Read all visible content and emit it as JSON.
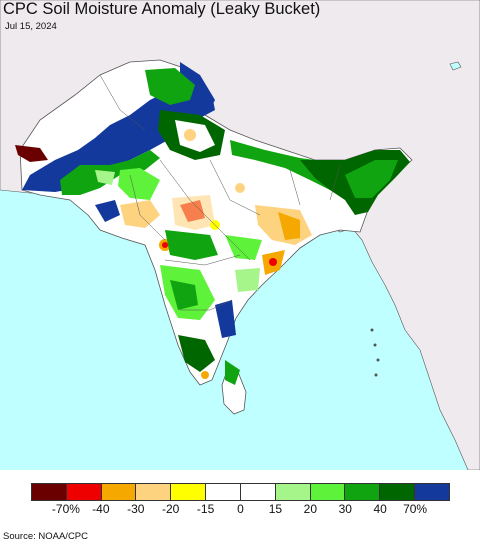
{
  "title": "CPC Soil Moisture Anomaly (Leaky Bucket)",
  "date": "Jul 15, 2024",
  "source": "Source: NOAA/CPC",
  "colors": {
    "ocean": "#bfffff",
    "land_outside": "#eeeaee",
    "land_neutral": "#ffffff",
    "border": "#555555"
  },
  "legend": {
    "swatches": [
      "#6b0000",
      "#ee0000",
      "#f5a800",
      "#fdd380",
      "#ffff00",
      "#ffffff",
      "#ffffff",
      "#a6f58a",
      "#5ef23a",
      "#10a510",
      "#006600",
      "#12399b"
    ],
    "ticks": [
      "-70%",
      "-40",
      "-30",
      "-20",
      "-15",
      "0",
      "15",
      "20",
      "30",
      "40",
      "70%"
    ]
  }
}
